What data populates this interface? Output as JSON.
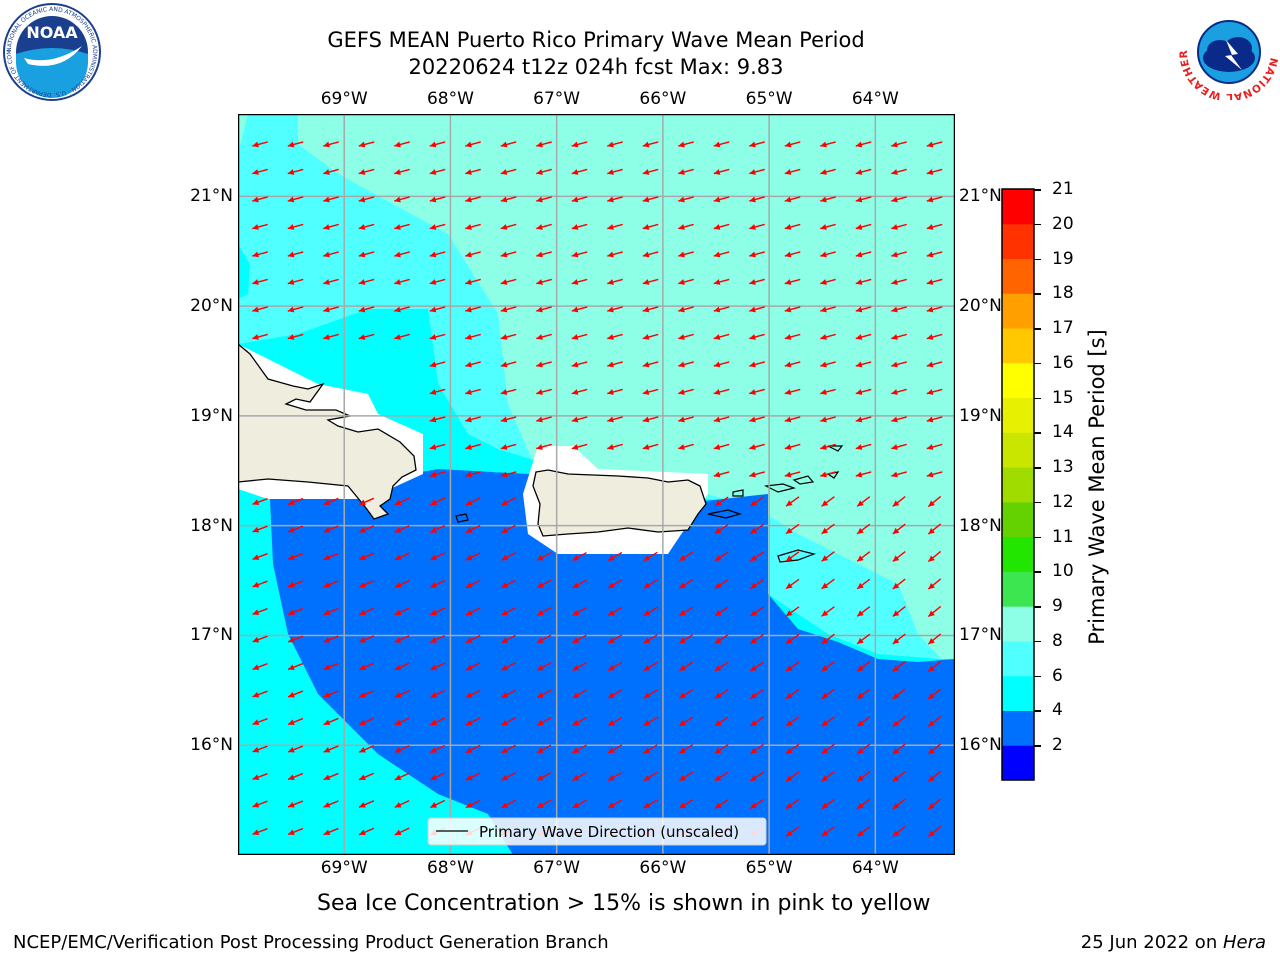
{
  "title": {
    "line1": "GEFS MEAN Puerto Rico Primary Wave Mean Period",
    "line2": "20220624 t12z 024h fcst   Max: 9.83"
  },
  "logos": {
    "left_text": "NOAA",
    "left_ring_text": "NATIONAL OCEANIC AND ATMOSPHERIC ADMINISTRATION · U.S. DEPARTMENT OF COMMERCE",
    "right_ring_text": "NATIONAL WEATHER SERVICE"
  },
  "map": {
    "lon_labels": [
      "69°W",
      "68°W",
      "67°W",
      "66°W",
      "65°W",
      "64°W"
    ],
    "lat_labels": [
      "21°N",
      "20°N",
      "19°N",
      "18°N",
      "17°N",
      "16°N"
    ],
    "extent": {
      "lon": [
        -70.0,
        -63.25
      ],
      "lat": [
        15.0,
        21.75
      ]
    },
    "arrow_color": "#ff0000",
    "land_color": "#efedde",
    "legend": "Primary Wave Direction (unscaled)"
  },
  "colorbar": {
    "label": "Primary Wave Mean Period [s]",
    "ticks": [
      "21",
      "20",
      "19",
      "18",
      "17",
      "16",
      "15",
      "14",
      "13",
      "12",
      "11",
      "10",
      "9",
      "8",
      "6",
      "4",
      "2"
    ],
    "colors_bottom_to_top": [
      "#0000ff",
      "#0070ff",
      "#00ffff",
      "#50ffff",
      "#8cffe6",
      "#3ce650",
      "#22e600",
      "#64d200",
      "#a0dc00",
      "#c8e600",
      "#e6f000",
      "#ffff00",
      "#ffc800",
      "#ffa000",
      "#ff6400",
      "#ff3200",
      "#ff0000"
    ]
  },
  "sea_ice_note": "Sea Ice Concentration > 15% is shown in pink to yellow",
  "footer": {
    "left": "NCEP/EMC/Verification Post Processing Product Generation Branch",
    "right_prefix": "25 Jun 2022 on ",
    "right_host": "Hera"
  }
}
